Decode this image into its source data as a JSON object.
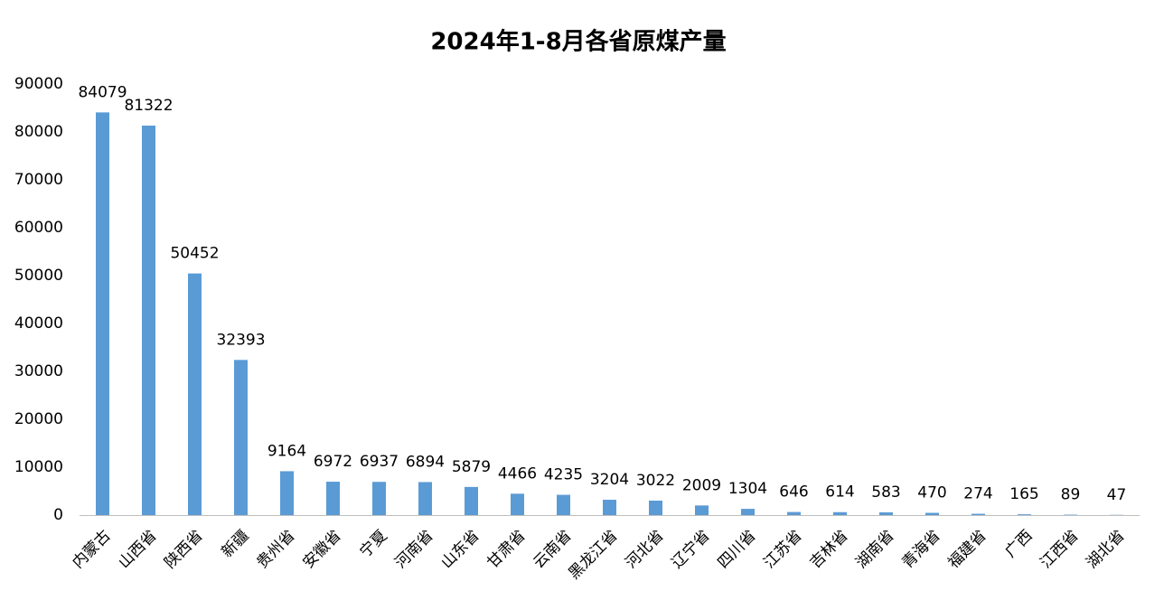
{
  "chart_data": {
    "type": "bar",
    "title": "2024年1-8月各省原煤产量",
    "categories": [
      "内蒙古",
      "山西省",
      "陕西省",
      "新疆",
      "贵州省",
      "安徽省",
      "宁夏",
      "河南省",
      "山东省",
      "甘肃省",
      "云南省",
      "黑龙江省",
      "河北省",
      "辽宁省",
      "四川省",
      "江苏省",
      "吉林省",
      "湖南省",
      "青海省",
      "福建省",
      "广西",
      "江西省",
      "湖北省"
    ],
    "values": [
      84079,
      81322,
      50452,
      32393,
      9164,
      6972,
      6937,
      6894,
      5879,
      4466,
      4235,
      3204,
      3022,
      2009,
      1304,
      646,
      614,
      583,
      470,
      274,
      165,
      89,
      47
    ],
    "color": "#5b9bd5",
    "ylim": [
      0,
      90000
    ],
    "yticks": [
      0,
      10000,
      20000,
      30000,
      40000,
      50000,
      60000,
      70000,
      80000,
      90000
    ],
    "grid": false
  }
}
